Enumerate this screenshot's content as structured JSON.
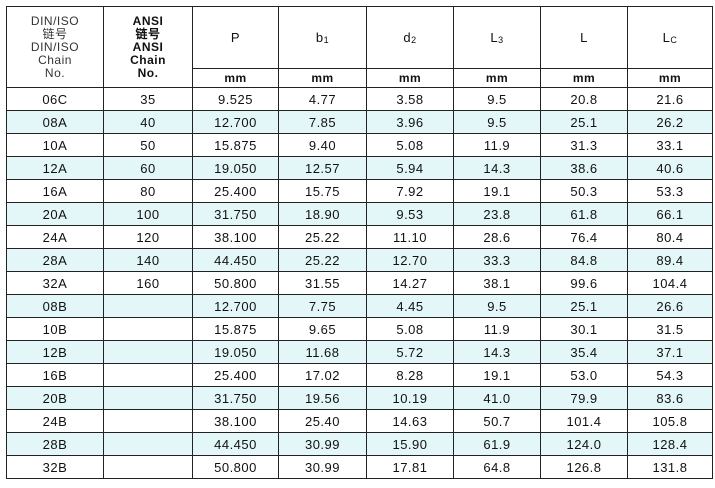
{
  "header": {
    "columns": [
      {
        "lines": [
          "DIN/ISO",
          "链号",
          "DIN/ISO",
          "Chain",
          "No."
        ]
      },
      {
        "lines": [
          "ANSI",
          "链号",
          "ANSI",
          "Chain",
          "No."
        ]
      },
      {
        "main": "P"
      },
      {
        "main": "b",
        "sub": "1"
      },
      {
        "main": "d",
        "sub": "2"
      },
      {
        "main": "L",
        "sub": "3"
      },
      {
        "main": "L"
      },
      {
        "main": "L",
        "sub": "C"
      }
    ],
    "units": [
      "mm",
      "mm",
      "mm",
      "mm",
      "mm",
      "mm"
    ]
  },
  "table": {
    "rows": [
      [
        "06C",
        "35",
        "9.525",
        "4.77",
        "3.58",
        "9.5",
        "20.8",
        "21.6"
      ],
      [
        "08A",
        "40",
        "12.700",
        "7.85",
        "3.96",
        "9.5",
        "25.1",
        "26.2"
      ],
      [
        "10A",
        "50",
        "15.875",
        "9.40",
        "5.08",
        "11.9",
        "31.3",
        "33.1"
      ],
      [
        "12A",
        "60",
        "19.050",
        "12.57",
        "5.94",
        "14.3",
        "38.6",
        "40.6"
      ],
      [
        "16A",
        "80",
        "25.400",
        "15.75",
        "7.92",
        "19.1",
        "50.3",
        "53.3"
      ],
      [
        "20A",
        "100",
        "31.750",
        "18.90",
        "9.53",
        "23.8",
        "61.8",
        "66.1"
      ],
      [
        "24A",
        "120",
        "38.100",
        "25.22",
        "11.10",
        "28.6",
        "76.4",
        "80.4"
      ],
      [
        "28A",
        "140",
        "44.450",
        "25.22",
        "12.70",
        "33.3",
        "84.8",
        "89.4"
      ],
      [
        "32A",
        "160",
        "50.800",
        "31.55",
        "14.27",
        "38.1",
        "99.6",
        "104.4"
      ],
      [
        "08B",
        null,
        "12.700",
        "7.75",
        "4.45",
        "9.5",
        "25.1",
        "26.6"
      ],
      [
        "10B",
        null,
        "15.875",
        "9.65",
        "5.08",
        "11.9",
        "30.1",
        "31.5"
      ],
      [
        "12B",
        null,
        "19.050",
        "11.68",
        "5.72",
        "14.3",
        "35.4",
        "37.1"
      ],
      [
        "16B",
        null,
        "25.400",
        "17.02",
        "8.28",
        "19.1",
        "53.0",
        "54.3"
      ],
      [
        "20B",
        null,
        "31.750",
        "19.56",
        "10.19",
        "41.0",
        "79.9",
        "83.6"
      ],
      [
        "24B",
        null,
        "38.100",
        "25.40",
        "14.63",
        "50.7",
        "101.4",
        "105.8"
      ],
      [
        "28B",
        null,
        "44.450",
        "30.99",
        "15.90",
        "61.9",
        "124.0",
        "128.4"
      ],
      [
        "32B",
        null,
        "50.800",
        "30.99",
        "17.81",
        "64.8",
        "126.8",
        "131.8"
      ]
    ]
  }
}
